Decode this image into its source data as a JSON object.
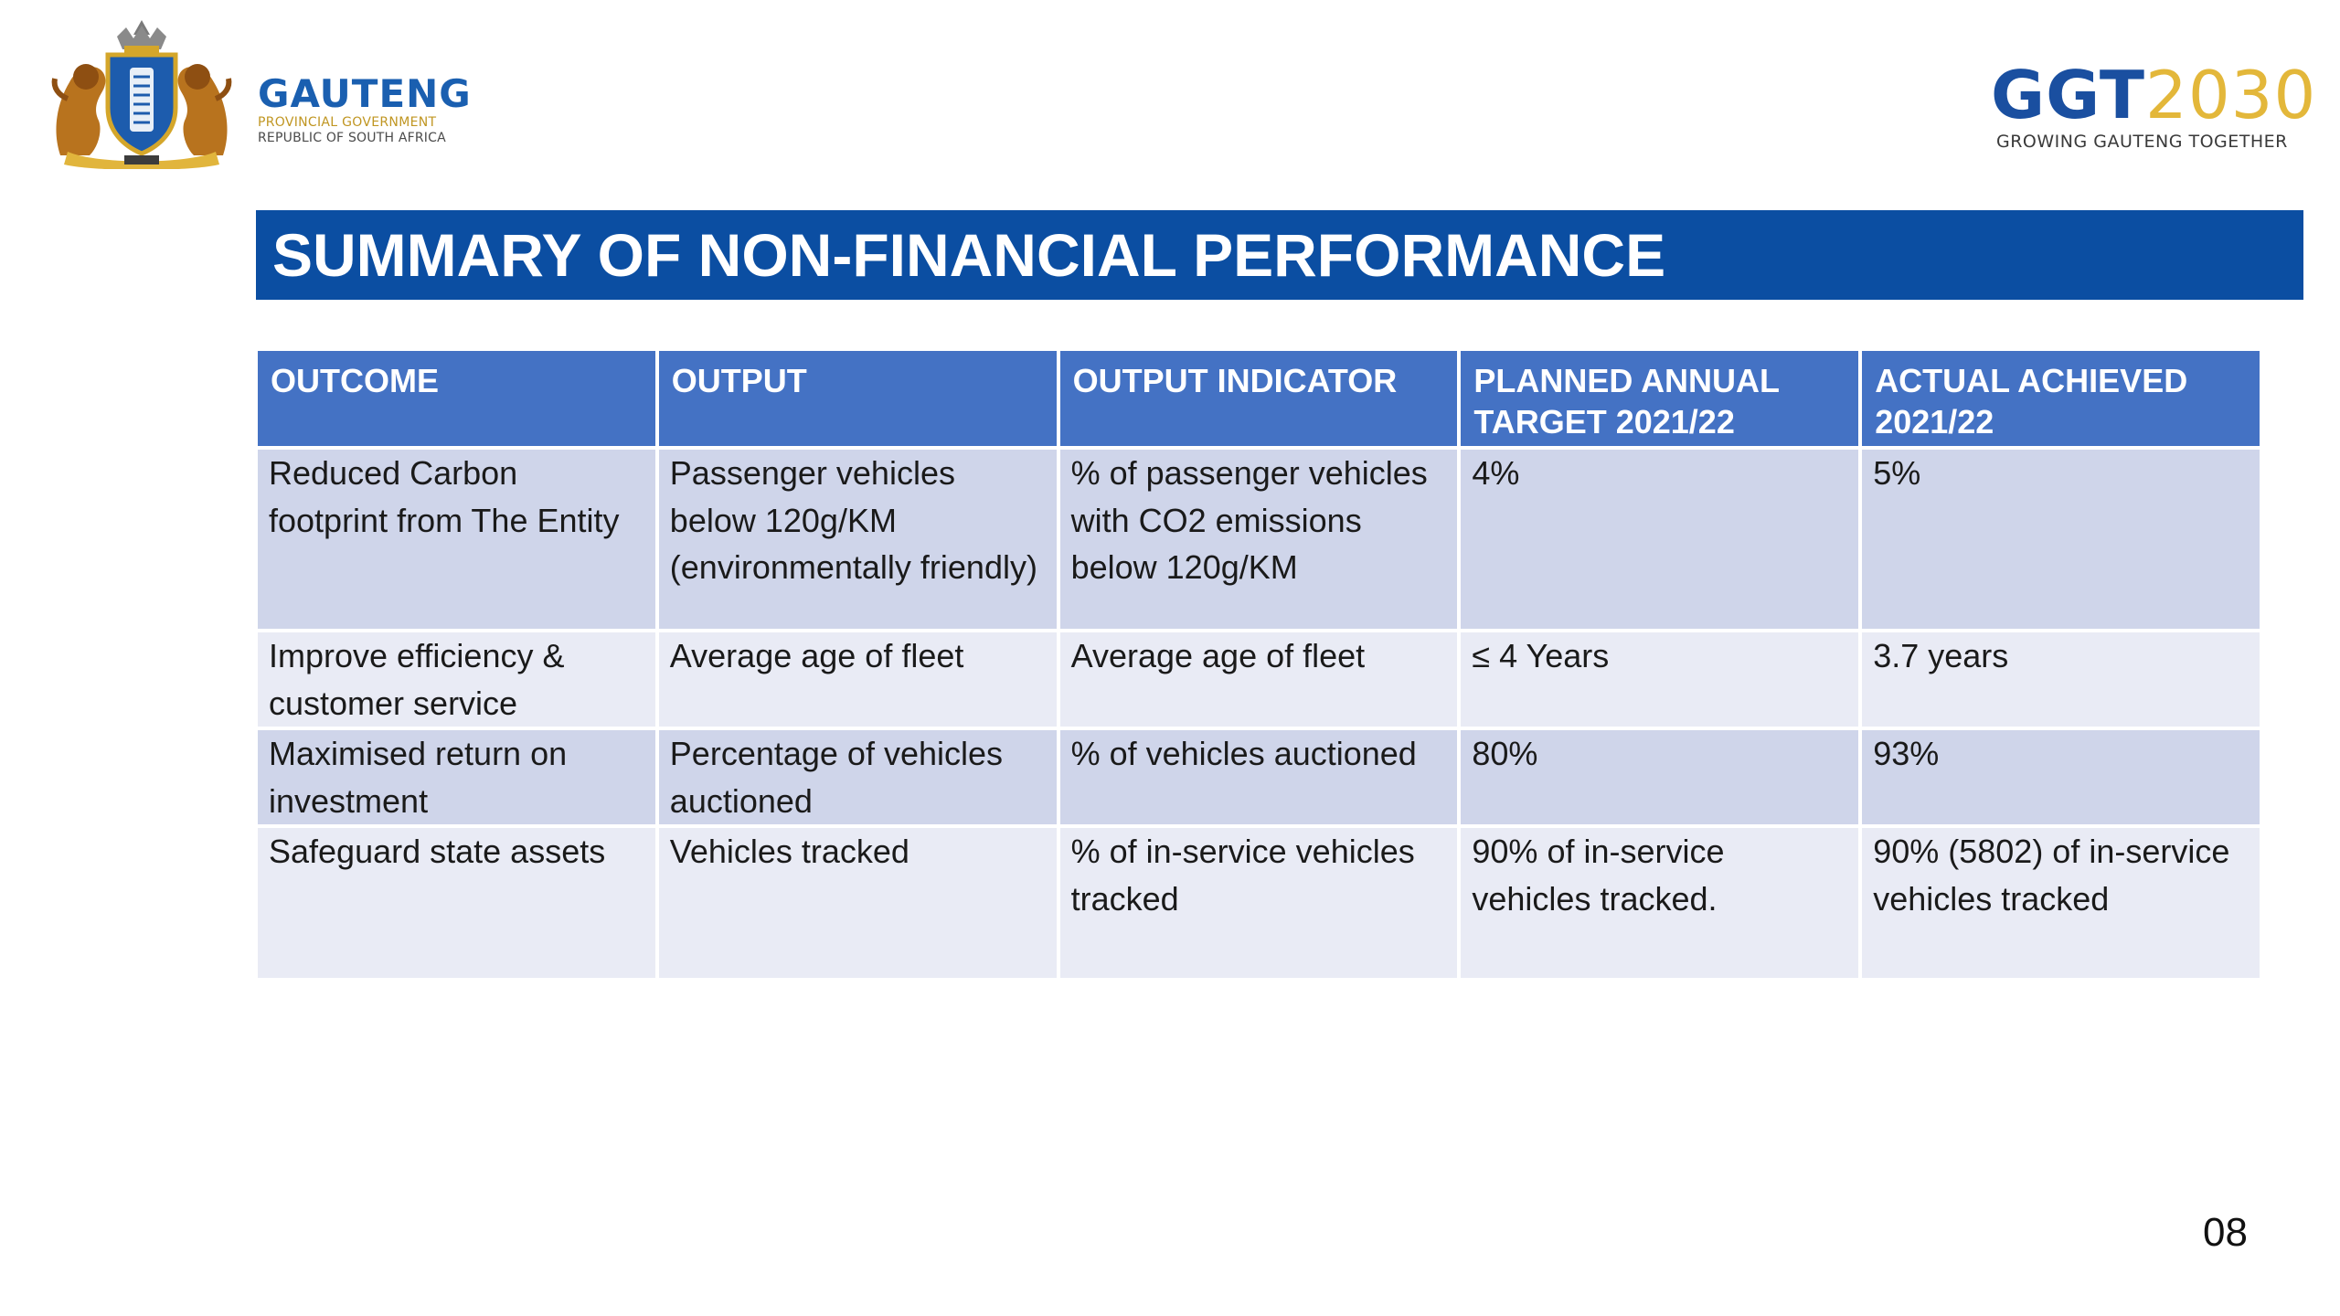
{
  "header": {
    "gauteng_logo": {
      "name": "GAUTENG",
      "line1": "PROVINCIAL GOVERNMENT",
      "line2": "REPUBLIC OF SOUTH AFRICA",
      "crest_icon": "coat-of-arms-icon"
    },
    "ggt_logo": {
      "part1": "GGT",
      "part2": "2030",
      "tagline": "GROWING GAUTENG TOGETHER"
    }
  },
  "title": "SUMMARY OF NON-FINANCIAL PERFORMANCE",
  "table": {
    "headers": {
      "outcome": "OUTCOME",
      "output": "OUTPUT",
      "output_indicator": "OUTPUT INDICATOR",
      "planned_target": "PLANNED ANNUAL TARGET 2021/22",
      "actual_achieved": "ACTUAL ACHIEVED 2021/22"
    },
    "rows": [
      {
        "outcome": "Reduced Carbon footprint from The Entity",
        "output": "Passenger vehicles below 120g/KM (environmentally friendly)",
        "output_indicator": "% of passenger vehicles with CO2 emissions below 120g/KM",
        "planned_target": "4%",
        "actual_achieved": "5%"
      },
      {
        "outcome": "Improve efficiency & customer service",
        "output": "Average age of fleet",
        "output_indicator": "Average age of fleet",
        "planned_target": "≤ 4 Years",
        "actual_achieved": "3.7 years"
      },
      {
        "outcome": "Maximised return on investment",
        "output": "Percentage of vehicles auctioned",
        "output_indicator": "% of vehicles auctioned",
        "planned_target": "80%",
        "actual_achieved": "93%"
      },
      {
        "outcome": "Safeguard state assets",
        "output": "Vehicles tracked",
        "output_indicator": "% of in-service vehicles tracked",
        "planned_target": "90% of in-service vehicles tracked.",
        "actual_achieved": "90% (5802) of in-service vehicles tracked"
      }
    ]
  },
  "page_number": "08",
  "colors": {
    "title_bar": "#0b4ea2",
    "table_header": "#4472c4",
    "row_dark": "#cfd5ea",
    "row_light": "#e9ebf5",
    "gauteng_blue": "#1a5fb0",
    "gold": "#e3b73a"
  }
}
